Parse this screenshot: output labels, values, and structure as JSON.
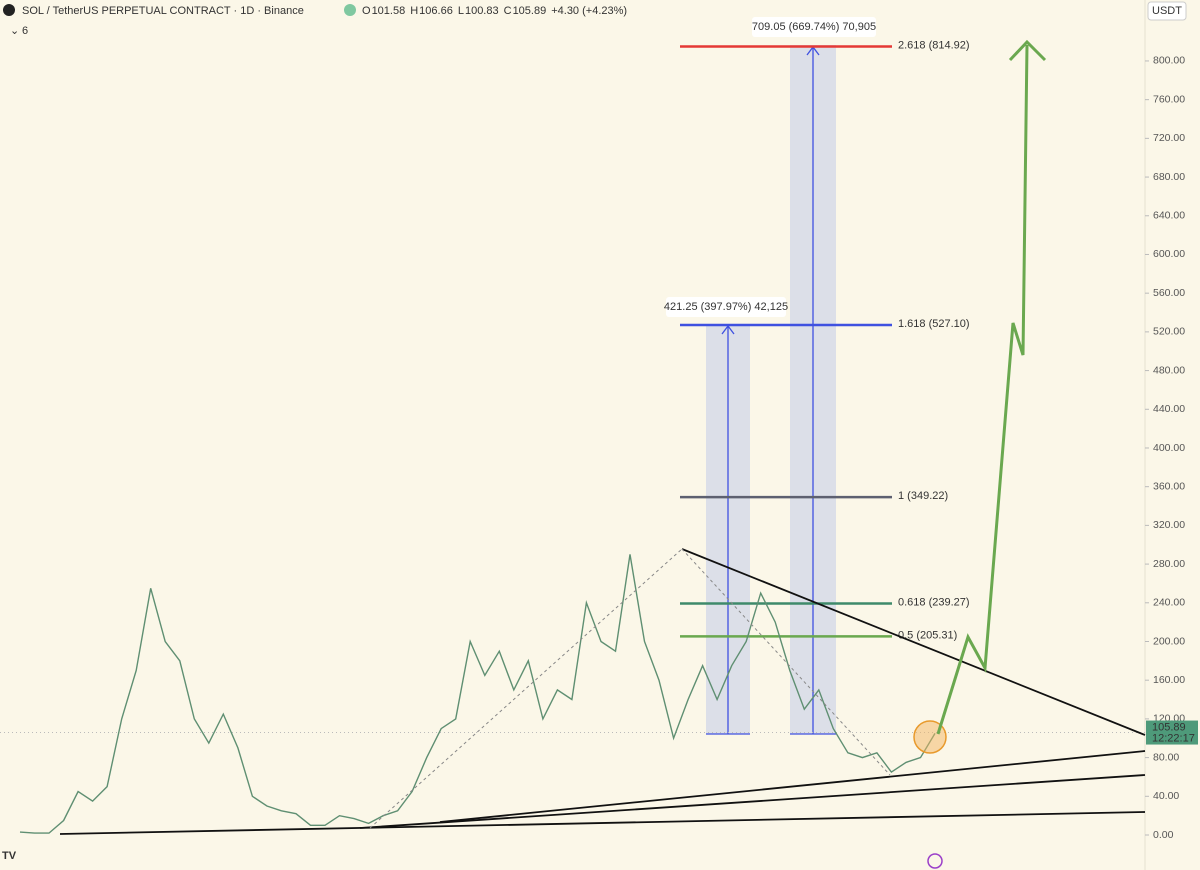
{
  "chart_data": {
    "type": "line",
    "title": "SOL / TetherUS PERPETUAL CONTRACT · 1D · Binance",
    "ohlc": [
      {
        "label": "O",
        "value": 101.58
      },
      {
        "label": "H",
        "value": 106.66
      },
      {
        "label": "L",
        "value": 100.83
      },
      {
        "label": "C",
        "value": 105.89
      }
    ],
    "change": "+4.30 (+4.23%)",
    "indicators": "6",
    "currency": "USDT",
    "last_price": 105.89,
    "last_price_label": "105.89",
    "countdown": "12:22:17",
    "ylim": [
      -15.5,
      863
    ],
    "yticks": [
      {
        "value": 0,
        "label": "0.00"
      },
      {
        "value": 40,
        "label": "40.00"
      },
      {
        "value": 80,
        "label": "80.00"
      },
      {
        "value": 120,
        "label": "120.00"
      },
      {
        "value": 160,
        "label": "160.00"
      },
      {
        "value": 200,
        "label": "200.00"
      },
      {
        "value": 240,
        "label": "240.00"
      },
      {
        "value": 280,
        "label": "280.00"
      },
      {
        "value": 320,
        "label": "320.00"
      },
      {
        "value": 360,
        "label": "360.00"
      },
      {
        "value": 400,
        "label": "400.00"
      },
      {
        "value": 440,
        "label": "440.00"
      },
      {
        "value": 480,
        "label": "480.00"
      },
      {
        "value": 520,
        "label": "520.00"
      },
      {
        "value": 560,
        "label": "560.00"
      },
      {
        "value": 600,
        "label": "600.00"
      },
      {
        "value": 640,
        "label": "640.00"
      },
      {
        "value": 680,
        "label": "680.00"
      },
      {
        "value": 720,
        "label": "720.00"
      },
      {
        "value": 760,
        "label": "760.00"
      },
      {
        "value": 800,
        "label": "800.00"
      }
    ],
    "series": [
      {
        "color": "#5f8f72",
        "values": [
          3,
          2,
          2,
          15,
          45,
          35,
          50,
          120,
          170,
          255,
          200,
          180,
          120,
          95,
          125,
          90,
          40,
          30,
          25,
          22,
          10,
          10,
          20,
          17,
          12,
          20,
          25,
          45,
          80,
          110,
          120,
          200,
          165,
          190,
          150,
          180,
          120,
          150,
          140,
          240,
          200,
          190,
          290,
          200,
          160,
          100,
          140,
          175,
          140,
          175,
          200,
          250,
          220,
          170,
          130,
          150,
          110,
          85,
          80,
          85,
          65,
          75,
          80,
          105
        ]
      }
    ],
    "fib_levels": [
      {
        "label": "2.618 (814.92)",
        "value": 814.92,
        "color": "#e53935"
      },
      {
        "label": "1.618 (527.10)",
        "value": 527.1,
        "color": "#3f51e0"
      },
      {
        "label": "1 (349.22)",
        "value": 349.22,
        "color": "#5d6070"
      },
      {
        "label": "0.618 (239.27)",
        "value": 239.27,
        "color": "#3e8a6a"
      },
      {
        "label": "0.5 (205.31)",
        "value": 205.31,
        "color": "#6aa84f"
      }
    ],
    "measurements": [
      "421.25 (397.97%) 42,125",
      "709.05 (669.74%) 70,905"
    ]
  }
}
